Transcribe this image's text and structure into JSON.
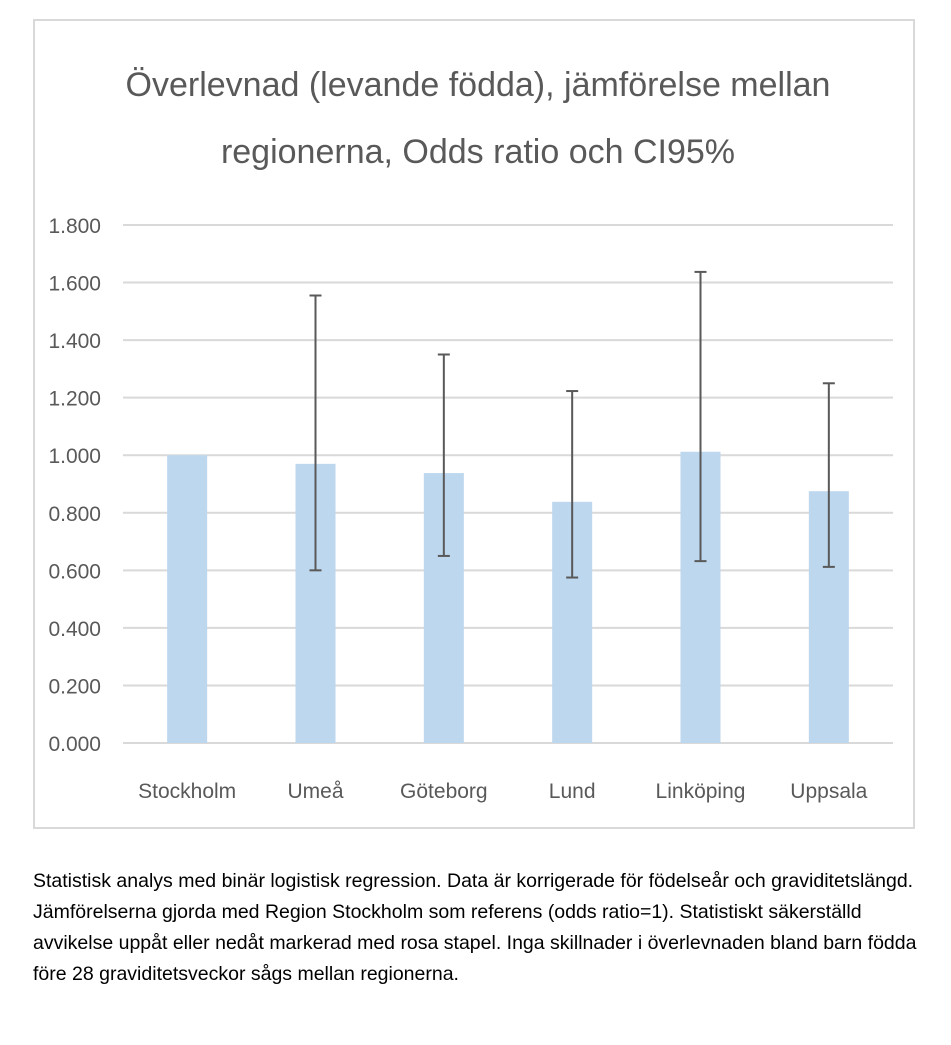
{
  "chart_data": {
    "type": "bar",
    "title_lines": [
      "Överlevnad (levande födda), jämförelse mellan",
      "regionerna, Odds ratio och CI95%"
    ],
    "categories": [
      "Stockholm",
      "Umeå",
      "Göteborg",
      "Lund",
      "Linköping",
      "Uppsala"
    ],
    "values": [
      1.0,
      0.97,
      0.938,
      0.838,
      1.012,
      0.875
    ],
    "ci_lower": [
      null,
      0.6,
      0.65,
      0.575,
      0.632,
      0.612
    ],
    "ci_upper": [
      null,
      1.555,
      1.35,
      1.223,
      1.637,
      1.25
    ],
    "ylim": [
      0,
      1.8
    ],
    "y_ticks": [
      "0.000",
      "0.200",
      "0.400",
      "0.600",
      "0.800",
      "1.000",
      "1.200",
      "1.400",
      "1.600",
      "1.800"
    ],
    "y_tick_values": [
      0,
      0.2,
      0.4,
      0.6,
      0.8,
      1.0,
      1.2,
      1.4,
      1.6,
      1.8
    ],
    "grid": true,
    "legend": "none",
    "colors": {
      "bar": "#bdd7ee",
      "error_bar": "#595959",
      "grid": "#d9d9d9",
      "text": "#595959"
    }
  },
  "caption": "Statistisk analys med binär logistisk regression. Data är korrigerade för födelseår och graviditetslängd. Jämförelserna gjorda med Region Stockholm som referens (odds ratio=1). Statistiskt säkerställd avvikelse uppåt eller nedåt markerad med rosa stapel. Inga skillnader i överlevnaden bland barn födda före 28 graviditetsveckor sågs mellan regionerna."
}
